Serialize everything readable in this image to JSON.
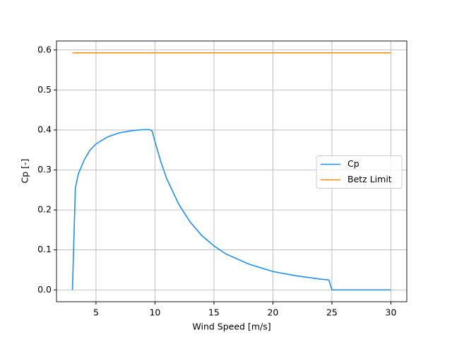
{
  "chart_data": {
    "type": "line",
    "xlabel": "Wind Speed [m/s]",
    "ylabel": "Cp [-]",
    "xlim": [
      1.65,
      31.35
    ],
    "ylim": [
      -0.0296,
      0.6226
    ],
    "xticks": [
      5,
      10,
      15,
      20,
      25,
      30
    ],
    "yticks": [
      {
        "value": 0,
        "label": "0.0"
      },
      0.1,
      0.2,
      0.3,
      0.4,
      0.5,
      0.6
    ],
    "grid": true,
    "legend": "center right",
    "series": [
      {
        "name": "Cp",
        "color": "#1f8ff0",
        "x": [
          3,
          3.25,
          3.5,
          4,
          4.5,
          5,
          6,
          7,
          8,
          9,
          9.5,
          9.75,
          10,
          10.5,
          11,
          12,
          13,
          14,
          15,
          16,
          18,
          20,
          22,
          24,
          24.75,
          25,
          30
        ],
        "values": [
          0,
          0.255,
          0.29,
          0.325,
          0.35,
          0.365,
          0.383,
          0.393,
          0.398,
          0.401,
          0.401,
          0.398,
          0.371,
          0.32,
          0.278,
          0.215,
          0.169,
          0.135,
          0.11,
          0.09,
          0.064,
          0.046,
          0.035,
          0.027,
          0.0245,
          0,
          0
        ]
      },
      {
        "name": "Betz Limit",
        "color": "#ff8c0e",
        "x": [
          3,
          30
        ],
        "values": [
          0.593,
          0.593
        ]
      }
    ]
  }
}
